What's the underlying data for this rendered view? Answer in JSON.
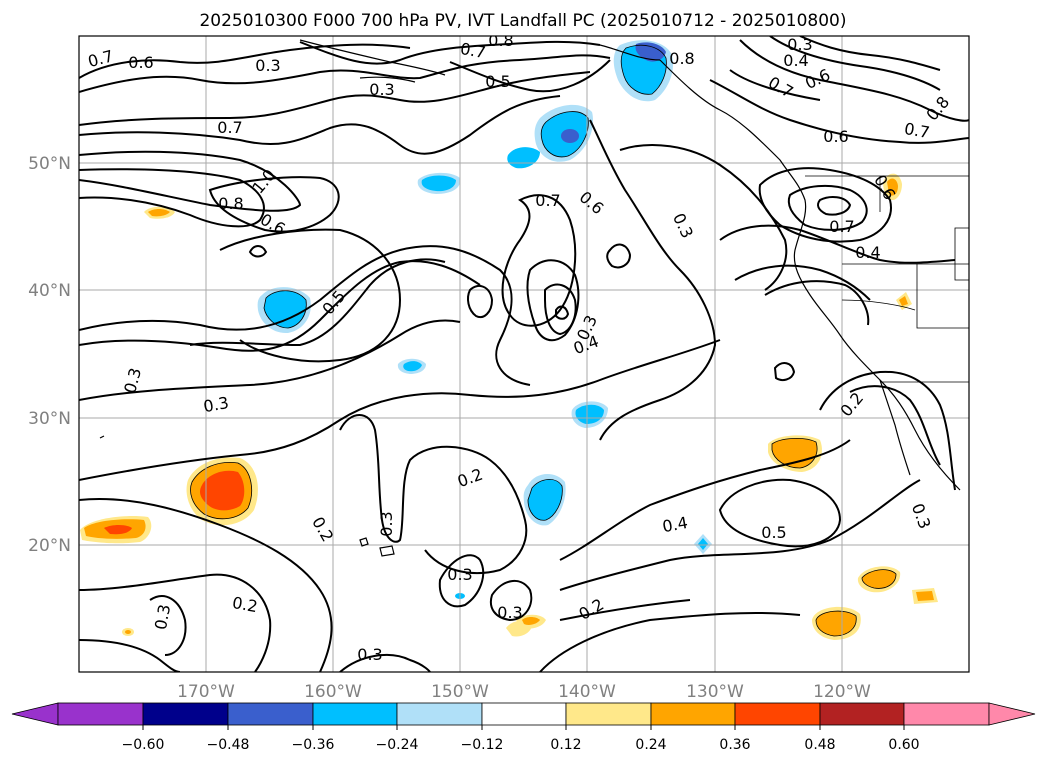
{
  "title": "2025010300 F000 700 hPa PV, IVT Landfall PC (2025010712 - 2025010800)",
  "map": {
    "lon_labels": [
      "170°W",
      "160°W",
      "150°W",
      "140°W",
      "130°W",
      "120°W"
    ],
    "lat_labels": [
      "50°N",
      "40°N",
      "30°N",
      "20°N"
    ],
    "contour_labels": [
      "0.7",
      "0.6",
      "0.3",
      "0.3",
      "0.7",
      "0.8",
      "0.5",
      "0.8",
      "0.3",
      "0.4",
      "0.6",
      "0.7",
      "0.8",
      "0.7",
      "0.6",
      "0.7",
      "0.6",
      "0.7",
      "0.6",
      "1.0",
      "0.8",
      "0.6",
      "0.3",
      "0.7",
      "0.4",
      "0.5",
      "0.3",
      "0.4",
      "0.3",
      "0.3",
      "0.2",
      "0.2",
      "0.2",
      "0.3",
      "0.4",
      "0.5",
      "0.3",
      "0.3",
      "0.3",
      "0.2",
      "0.2",
      "0.3"
    ]
  },
  "colorbar": {
    "tick_labels": [
      "−0.60",
      "−0.48",
      "−0.36",
      "−0.24",
      "−0.12",
      "0.12",
      "0.24",
      "0.36",
      "0.48",
      "0.60"
    ],
    "colors": [
      "#9932cc",
      "#00008b",
      "#3a5fcd",
      "#00bfff",
      "#b0e0f8",
      "#ffffff",
      "#ffe88a",
      "#ffa500",
      "#ff4500",
      "#b22222",
      "#ff88aa"
    ]
  }
}
